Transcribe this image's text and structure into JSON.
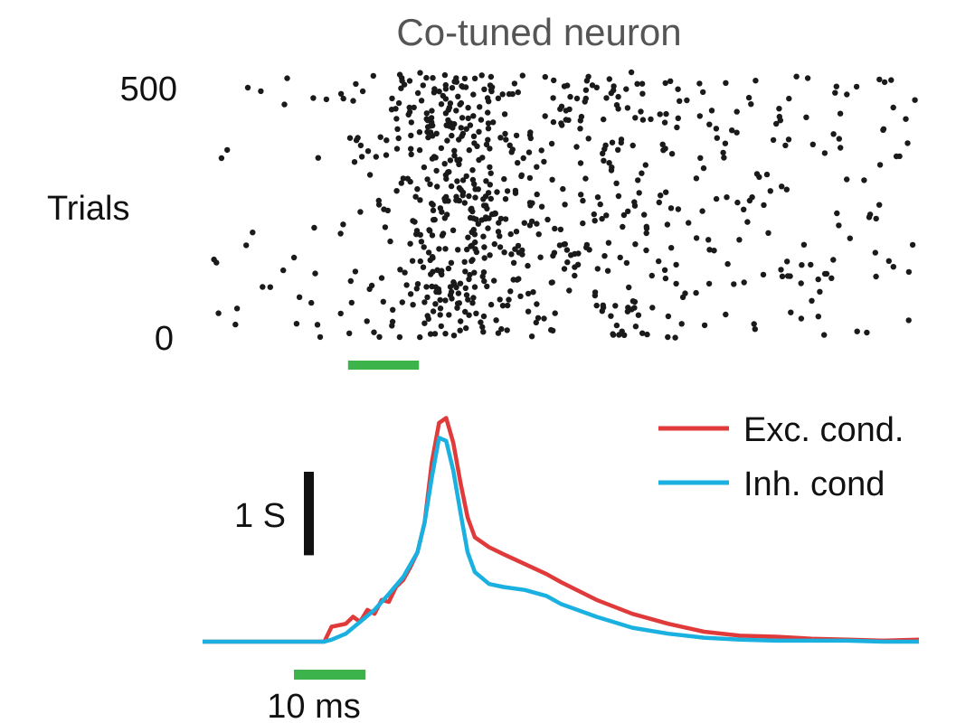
{
  "chart_data": [
    {
      "type": "scatter",
      "title": "Co-tuned neuron",
      "ylabel": "Trials",
      "y_ticks": [
        "0",
        "500"
      ],
      "ylim": [
        0,
        500
      ],
      "xlim": [
        -20,
        80
      ],
      "x_unit": "ms",
      "stimulus_bar": {
        "start": 0,
        "end": 10,
        "color": "#3cb44b"
      },
      "density_profile": {
        "description_free_values": true,
        "times": [
          -20,
          -10,
          0,
          5,
          10,
          12,
          15,
          20,
          25,
          30,
          40,
          50,
          60,
          70,
          80
        ],
        "relative_rate": [
          0.05,
          0.05,
          0.08,
          0.25,
          0.6,
          1.0,
          1.0,
          0.6,
          0.45,
          0.4,
          0.3,
          0.22,
          0.16,
          0.12,
          0.1
        ]
      },
      "dot_color": "#1a1a1a",
      "approx_spike_count": 780
    },
    {
      "type": "line",
      "series": [
        {
          "name": "Exc. cond.",
          "color": "#e03a3a",
          "t": [
            -20,
            -10,
            -3,
            -2,
            0,
            1,
            2,
            3,
            4,
            5,
            6,
            7,
            8,
            9,
            10,
            11,
            12,
            13,
            14,
            15,
            16,
            17,
            18,
            20,
            22,
            25,
            28,
            30,
            35,
            40,
            45,
            50,
            55,
            60,
            65,
            70,
            75,
            80
          ],
          "values": [
            0,
            0,
            0,
            0.15,
            0.18,
            0.25,
            0.2,
            0.32,
            0.28,
            0.42,
            0.4,
            0.55,
            0.62,
            0.75,
            0.9,
            1.2,
            1.8,
            2.2,
            2.25,
            2.0,
            1.6,
            1.25,
            1.05,
            0.95,
            0.88,
            0.78,
            0.68,
            0.6,
            0.42,
            0.28,
            0.18,
            0.1,
            0.06,
            0.05,
            0.03,
            0.02,
            0.01,
            0.02
          ]
        },
        {
          "name": "Inh. cond",
          "color": "#1ab0e0",
          "t": [
            -20,
            -10,
            -3,
            -2,
            0,
            2,
            4,
            6,
            8,
            10,
            11,
            12,
            13,
            14,
            15,
            16,
            17,
            18,
            20,
            22,
            25,
            28,
            30,
            35,
            40,
            45,
            50,
            55,
            60,
            65,
            70,
            75,
            80
          ],
          "values": [
            0,
            0,
            0,
            0.02,
            0.08,
            0.2,
            0.32,
            0.48,
            0.65,
            0.9,
            1.2,
            1.65,
            2.05,
            2.02,
            1.72,
            1.3,
            0.9,
            0.7,
            0.58,
            0.55,
            0.52,
            0.46,
            0.38,
            0.25,
            0.14,
            0.08,
            0.04,
            0.02,
            0.01,
            0.01,
            0.01,
            0.0,
            0.0
          ]
        }
      ],
      "legend_position": "top-right",
      "xlim": [
        -20,
        80
      ],
      "scale_bar_y": {
        "value": 1,
        "label": "1 S",
        "color": "#111111"
      },
      "scale_bar_x": {
        "value": 10,
        "label": "10 ms",
        "color": "#3cb44b"
      }
    }
  ]
}
